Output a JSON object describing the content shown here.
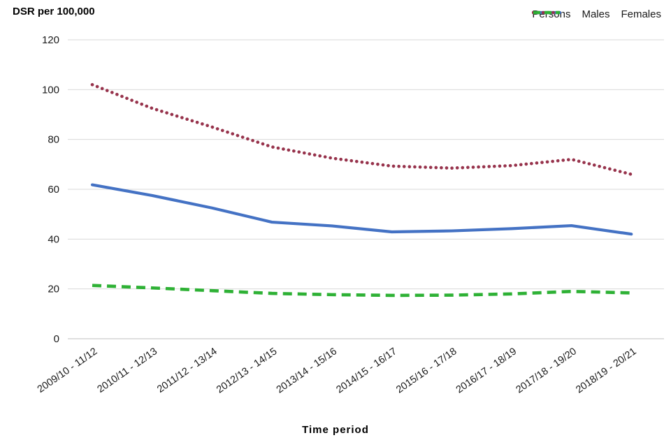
{
  "chart_data": {
    "type": "line",
    "title": "DSR per 100,000",
    "xlabel": "Time period",
    "ylabel": "DSR per 100,000",
    "ylim": [
      0,
      120
    ],
    "ytick_step": 20,
    "grid": true,
    "legend_position": "top-right",
    "categories": [
      "2009/10 - 11/12",
      "2010/11 - 12/13",
      "2011/12 - 13/14",
      "2012/13 - 14/15",
      "2013/14 - 15/16",
      "2014/15 - 16/17",
      "2015/16 - 17/18",
      "2016/17 - 18/19",
      "2017/18 - 19/20",
      "2018/19 - 20/21"
    ],
    "series": [
      {
        "name": "Persons",
        "style": "solid",
        "color": "#4472C4",
        "values": [
          61.8,
          57.5,
          52.5,
          46.8,
          45.3,
          42.9,
          43.3,
          44.2,
          45.4,
          42.0
        ]
      },
      {
        "name": "Males",
        "style": "dotted",
        "color": "#97334C",
        "values": [
          102.0,
          92.5,
          85.0,
          77.0,
          72.5,
          69.3,
          68.5,
          69.5,
          72.0,
          66.0
        ]
      },
      {
        "name": "Females",
        "style": "dashed",
        "color": "#2EB135",
        "values": [
          21.4,
          20.4,
          19.3,
          18.2,
          17.7,
          17.4,
          17.5,
          18.0,
          19.0,
          18.4
        ]
      }
    ],
    "colors": {
      "gridline": "#D9D9D9",
      "axis_line": "#BFBFBF",
      "tick_text": "#1A1A1A"
    }
  }
}
